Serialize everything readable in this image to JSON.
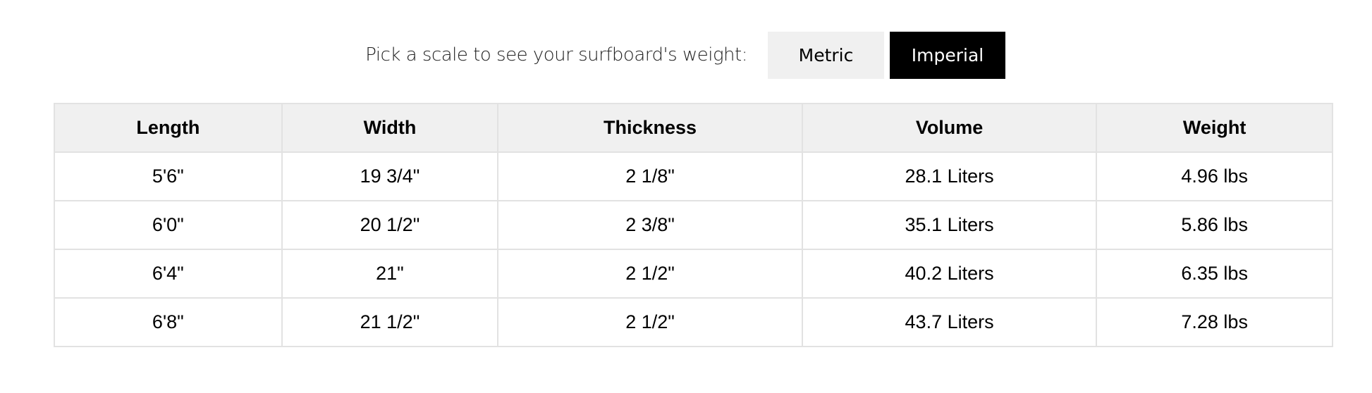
{
  "picker": {
    "label": "Pick a scale to see your surfboard's weight:",
    "options": [
      {
        "label": "Metric",
        "selected": false
      },
      {
        "label": "Imperial",
        "selected": true
      }
    ]
  },
  "table": {
    "headers": [
      "Length",
      "Width",
      "Thickness",
      "Volume",
      "Weight"
    ],
    "rows": [
      [
        "5'6\"",
        "19 3/4\"",
        "2 1/8\"",
        "28.1 Liters",
        "4.96 lbs"
      ],
      [
        "6'0\"",
        "20 1/2\"",
        "2 3/8\"",
        "35.1 Liters",
        "5.86 lbs"
      ],
      [
        "6'4\"",
        "21\"",
        "2 1/2\"",
        "40.2 Liters",
        "6.35 lbs"
      ],
      [
        "6'8\"",
        "21 1/2\"",
        "2 1/2\"",
        "43.7 Liters",
        "7.28 lbs"
      ]
    ]
  },
  "colors": {
    "selected_bg": "#000000",
    "unselected_bg": "#f0f0f0",
    "header_bg": "#f0f0f0",
    "border": "#e2e2e2"
  }
}
